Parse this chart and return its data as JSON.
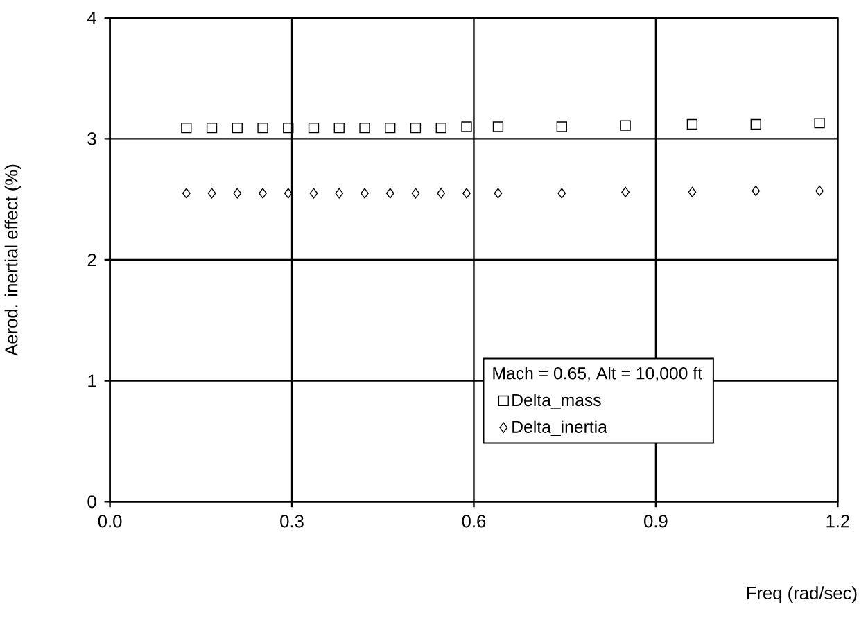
{
  "chart_data": {
    "type": "scatter",
    "xlabel": "Freq  (rad/sec)",
    "ylabel": "Aerod. inertial effect (%)",
    "legend_title": "Mach = 0.65, Alt = 10,000 ft",
    "x": [
      0.126,
      0.168,
      0.21,
      0.252,
      0.294,
      0.336,
      0.378,
      0.42,
      0.462,
      0.504,
      0.546,
      0.588,
      0.64,
      0.745,
      0.85,
      0.96,
      1.065,
      1.17
    ],
    "series": [
      {
        "name": "Delta_mass",
        "color": "#000000",
        "marker": "square",
        "values": [
          3.09,
          3.09,
          3.09,
          3.09,
          3.09,
          3.09,
          3.09,
          3.09,
          3.09,
          3.09,
          3.09,
          3.1,
          3.1,
          3.1,
          3.11,
          3.12,
          3.12,
          3.13
        ]
      },
      {
        "name": "Delta_inertia",
        "color": "#000000",
        "marker": "diamond",
        "values": [
          2.55,
          2.55,
          2.55,
          2.55,
          2.55,
          2.55,
          2.55,
          2.55,
          2.55,
          2.55,
          2.55,
          2.55,
          2.55,
          2.55,
          2.56,
          2.56,
          2.57,
          2.57
        ]
      }
    ],
    "xlim": [
      0,
      1.2
    ],
    "ylim": [
      0,
      4
    ],
    "xticks": [
      {
        "value": 0,
        "label": "0.0"
      },
      0.3,
      0.6,
      0.9,
      1.2
    ],
    "yticks": [
      0,
      1,
      2,
      3,
      4
    ],
    "grid": true,
    "legend": "bottom right"
  }
}
